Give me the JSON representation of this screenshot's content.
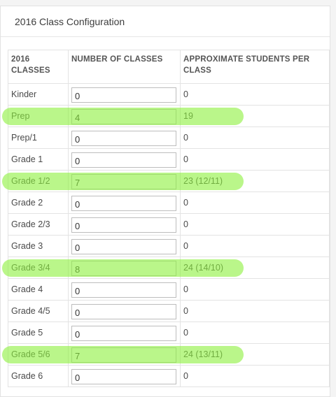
{
  "panel": {
    "title": "2016 Class Configuration"
  },
  "table": {
    "headers": {
      "classes": "2016 CLASSES",
      "number": "NUMBER OF CLASSES",
      "students": "APPROXIMATE STUDENTS PER CLASS"
    },
    "rows": [
      {
        "label": "Kinder",
        "count": "0",
        "approx": "0",
        "highlighted": false
      },
      {
        "label": "Prep",
        "count": "4",
        "approx": "19",
        "highlighted": true
      },
      {
        "label": "Prep/1",
        "count": "0",
        "approx": "0",
        "highlighted": false
      },
      {
        "label": "Grade 1",
        "count": "0",
        "approx": "0",
        "highlighted": false
      },
      {
        "label": "Grade 1/2",
        "count": "7",
        "approx": "23 (12/11)",
        "highlighted": true
      },
      {
        "label": "Grade 2",
        "count": "0",
        "approx": "0",
        "highlighted": false
      },
      {
        "label": "Grade 2/3",
        "count": "0",
        "approx": "0",
        "highlighted": false
      },
      {
        "label": "Grade 3",
        "count": "0",
        "approx": "0",
        "highlighted": false
      },
      {
        "label": "Grade 3/4",
        "count": "8",
        "approx": "24 (14/10)",
        "highlighted": true
      },
      {
        "label": "Grade 4",
        "count": "0",
        "approx": "0",
        "highlighted": false
      },
      {
        "label": "Grade 4/5",
        "count": "0",
        "approx": "0",
        "highlighted": false
      },
      {
        "label": "Grade 5",
        "count": "0",
        "approx": "0",
        "highlighted": false
      },
      {
        "label": "Grade 5/6",
        "count": "7",
        "approx": "24 (13/11)",
        "highlighted": true
      },
      {
        "label": "Grade 6",
        "count": "0",
        "approx": "0",
        "highlighted": false
      }
    ]
  },
  "colors": {
    "highlight": "#8cf03c",
    "border": "#e3e3e3"
  }
}
